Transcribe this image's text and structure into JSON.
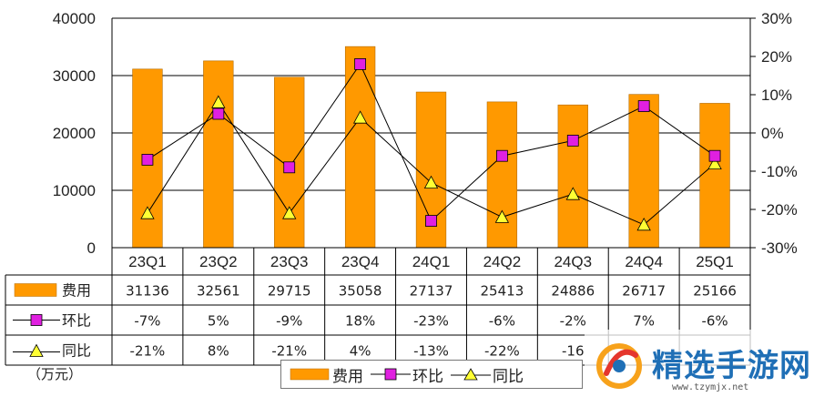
{
  "chart_data": {
    "type": "bar",
    "categories": [
      "23Q1",
      "23Q2",
      "23Q3",
      "23Q4",
      "24Q1",
      "24Q2",
      "24Q3",
      "24Q4",
      "25Q1"
    ],
    "series": [
      {
        "name": "费用",
        "type": "bar",
        "axis": "left",
        "values": [
          31136,
          32561,
          29715,
          35058,
          27137,
          25413,
          24886,
          26717,
          25166
        ]
      },
      {
        "name": "环比",
        "type": "line",
        "axis": "right",
        "marker": "square",
        "values": [
          -7,
          5,
          -9,
          18,
          -23,
          -6,
          -2,
          7,
          -6
        ]
      },
      {
        "name": "同比",
        "type": "line",
        "axis": "right",
        "marker": "triangle",
        "values": [
          -21,
          8,
          -21,
          4,
          -13,
          -22,
          -16,
          -24,
          -8
        ]
      }
    ],
    "left_axis": {
      "min": 0,
      "max": 40000,
      "ticks": [
        "0",
        "10000",
        "20000",
        "30000",
        "40000"
      ]
    },
    "right_axis": {
      "min": -30,
      "max": 30,
      "ticks": [
        "-30%",
        "-20%",
        "-10%",
        "0%",
        "10%",
        "20%",
        "30%"
      ]
    },
    "table": {
      "rows": [
        {
          "label": "费用",
          "cells": [
            "31136",
            "32561",
            "29715",
            "35058",
            "27137",
            "25413",
            "24886",
            "26717",
            "25166"
          ]
        },
        {
          "label": "环比",
          "cells": [
            "-7%",
            "5%",
            "-9%",
            "18%",
            "-23%",
            "-6%",
            "-2%",
            "7%",
            "-6%"
          ]
        },
        {
          "label": "同比",
          "cells": [
            "-21%",
            "8%",
            "-21%",
            "4%",
            "-13%",
            "-22%",
            "-16",
            "",
            ""
          ]
        }
      ]
    },
    "unit_label": "（万元）",
    "legend": [
      "费用",
      "环比",
      "同比"
    ],
    "legend_position": "bottom-center",
    "grid": true
  },
  "colors": {
    "bar": "#FF9900",
    "bar_stroke": "#B36B00",
    "square": "#E020E0",
    "triangle": "#FFFF33",
    "line": "#000000"
  },
  "watermark": {
    "text": "精选手游网",
    "url": "www.tzymjx.net",
    "text_color": "#1f6fb6"
  }
}
